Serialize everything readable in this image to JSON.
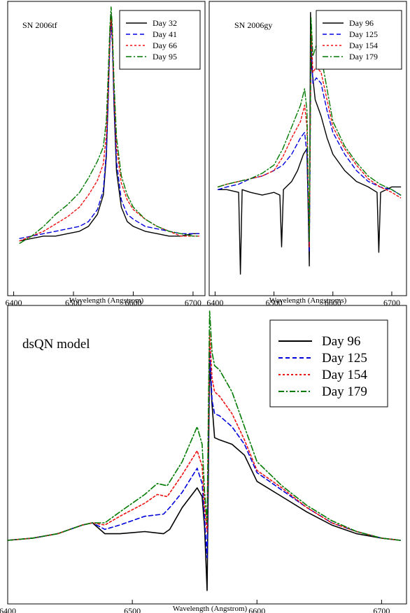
{
  "colors": {
    "black": "#000000",
    "blue": "#0000dd",
    "red": "#ee1111",
    "green": "#007a00"
  },
  "chart_data": [
    {
      "type": "line",
      "annotation": "SN 2006tf",
      "xlabel": "Wavelength (Angstrom)",
      "ylabel": "",
      "xlim": [
        6390,
        6720
      ],
      "xticks": [
        6400,
        6500,
        6600,
        6700
      ],
      "legend_position": "top-right",
      "grid": false,
      "series": [
        {
          "name": "Day 32",
          "color": "#000000",
          "dash": "solid",
          "x": [
            6410,
            6430,
            6450,
            6470,
            6490,
            6510,
            6525,
            6540,
            6550,
            6555,
            6558,
            6561,
            6563,
            6565,
            6568,
            6572,
            6580,
            6590,
            6600,
            6620,
            6640,
            6660,
            6680,
            6700,
            6710
          ],
          "y": [
            0.03,
            0.04,
            0.05,
            0.05,
            0.06,
            0.07,
            0.09,
            0.14,
            0.22,
            0.38,
            0.62,
            0.88,
            0.97,
            0.88,
            0.58,
            0.32,
            0.17,
            0.11,
            0.09,
            0.07,
            0.06,
            0.05,
            0.05,
            0.06,
            0.06
          ]
        },
        {
          "name": "Day 41",
          "color": "#0000dd",
          "dash": "6,4",
          "x": [
            6410,
            6430,
            6450,
            6470,
            6490,
            6510,
            6525,
            6540,
            6550,
            6555,
            6558,
            6561,
            6563,
            6565,
            6568,
            6572,
            6580,
            6590,
            6600,
            6620,
            6640,
            6660,
            6680,
            6700,
            6710
          ],
          "y": [
            0.04,
            0.05,
            0.06,
            0.07,
            0.08,
            0.09,
            0.11,
            0.16,
            0.24,
            0.4,
            0.62,
            0.85,
            0.93,
            0.85,
            0.6,
            0.36,
            0.2,
            0.14,
            0.12,
            0.09,
            0.08,
            0.07,
            0.06,
            0.06,
            0.06
          ]
        },
        {
          "name": "Day 66",
          "color": "#ee1111",
          "dash": "3,3",
          "x": [
            6410,
            6430,
            6450,
            6470,
            6490,
            6510,
            6525,
            6540,
            6550,
            6555,
            6558,
            6561,
            6563,
            6565,
            6568,
            6572,
            6580,
            6590,
            6600,
            6620,
            6640,
            6660,
            6680,
            6700,
            6710
          ],
          "y": [
            0.03,
            0.05,
            0.07,
            0.1,
            0.13,
            0.17,
            0.22,
            0.28,
            0.35,
            0.47,
            0.66,
            0.88,
            0.95,
            0.88,
            0.64,
            0.42,
            0.27,
            0.2,
            0.16,
            0.12,
            0.09,
            0.07,
            0.05,
            0.05,
            0.05
          ]
        },
        {
          "name": "Day 95",
          "color": "#007a00",
          "dash": "8,3,2,3",
          "x": [
            6410,
            6430,
            6450,
            6470,
            6490,
            6510,
            6525,
            6540,
            6550,
            6555,
            6558,
            6561,
            6563,
            6565,
            6568,
            6572,
            6580,
            6590,
            6600,
            6620,
            6640,
            6660,
            6680,
            6700,
            6710
          ],
          "y": [
            0.02,
            0.05,
            0.09,
            0.14,
            0.18,
            0.23,
            0.29,
            0.36,
            0.42,
            0.53,
            0.72,
            0.92,
            1.0,
            0.92,
            0.68,
            0.46,
            0.3,
            0.22,
            0.17,
            0.12,
            0.09,
            0.07,
            0.06,
            0.05,
            0.05
          ]
        }
      ]
    },
    {
      "type": "line",
      "annotation": "SN 2006gy",
      "xlabel": "Wavelength (Angstroms)",
      "ylabel": "",
      "xlim": [
        6390,
        6725
      ],
      "xticks": [
        6400,
        6500,
        6600,
        6700
      ],
      "legend_position": "top-right",
      "grid": false,
      "series": [
        {
          "name": "Day 96",
          "color": "#000000",
          "dash": "solid",
          "x": [
            6405,
            6420,
            6440,
            6443,
            6446,
            6460,
            6480,
            6500,
            6510,
            6513,
            6516,
            6530,
            6540,
            6550,
            6556,
            6560,
            6562,
            6564,
            6570,
            6580,
            6590,
            6600,
            6620,
            6640,
            6660,
            6675,
            6678,
            6681,
            6700,
            6715
          ],
          "y": [
            0.33,
            0.33,
            0.32,
            0.02,
            0.33,
            0.32,
            0.31,
            0.32,
            0.31,
            0.12,
            0.33,
            0.36,
            0.4,
            0.46,
            0.48,
            0.05,
            0.98,
            0.78,
            0.66,
            0.6,
            0.52,
            0.46,
            0.4,
            0.36,
            0.34,
            0.32,
            0.1,
            0.32,
            0.34,
            0.34
          ]
        },
        {
          "name": "Day 125",
          "color": "#0000dd",
          "dash": "6,4",
          "x": [
            6405,
            6420,
            6440,
            6460,
            6480,
            6500,
            6515,
            6530,
            6545,
            6552,
            6556,
            6560,
            6563,
            6566,
            6572,
            6580,
            6590,
            6600,
            6620,
            6640,
            6660,
            6680,
            6700,
            6715
          ],
          "y": [
            0.33,
            0.34,
            0.35,
            0.37,
            0.38,
            0.4,
            0.42,
            0.46,
            0.52,
            0.54,
            0.46,
            0.1,
            0.88,
            0.72,
            0.74,
            0.72,
            0.62,
            0.54,
            0.46,
            0.4,
            0.36,
            0.34,
            0.33,
            0.31
          ]
        },
        {
          "name": "Day 154",
          "color": "#ee1111",
          "dash": "3,3",
          "x": [
            6405,
            6420,
            6440,
            6460,
            6480,
            6500,
            6515,
            6530,
            6545,
            6552,
            6556,
            6560,
            6563,
            6566,
            6572,
            6580,
            6590,
            6600,
            6620,
            6640,
            6660,
            6680,
            6700,
            6715
          ],
          "y": [
            0.34,
            0.35,
            0.36,
            0.37,
            0.38,
            0.4,
            0.45,
            0.52,
            0.58,
            0.64,
            0.56,
            0.12,
            0.92,
            0.76,
            0.78,
            0.76,
            0.66,
            0.56,
            0.48,
            0.42,
            0.37,
            0.34,
            0.32,
            0.3
          ]
        },
        {
          "name": "Day 179",
          "color": "#007a00",
          "dash": "8,3,2,3",
          "x": [
            6405,
            6420,
            6440,
            6460,
            6480,
            6500,
            6515,
            6530,
            6545,
            6552,
            6556,
            6560,
            6563,
            6566,
            6572,
            6580,
            6590,
            6600,
            6620,
            6640,
            6660,
            6680,
            6700,
            6715
          ],
          "y": [
            0.34,
            0.35,
            0.36,
            0.37,
            0.39,
            0.42,
            0.48,
            0.56,
            0.64,
            0.7,
            0.62,
            0.14,
            0.96,
            0.82,
            0.86,
            0.82,
            0.7,
            0.58,
            0.49,
            0.43,
            0.38,
            0.35,
            0.33,
            0.31
          ]
        }
      ]
    },
    {
      "type": "line",
      "annotation": "dsQN model",
      "xlabel": "Wavelength (Angstrom)",
      "ylabel": "",
      "xlim": [
        6400,
        6720
      ],
      "xticks": [
        6400,
        6500,
        6600,
        6700
      ],
      "legend_position": "top-right",
      "grid": false,
      "series": [
        {
          "name": "Day 96",
          "color": "#000000",
          "dash": "solid",
          "x": [
            6400,
            6420,
            6440,
            6460,
            6468,
            6478,
            6490,
            6510,
            6525,
            6530,
            6540,
            6552,
            6556,
            6558,
            6560,
            6562,
            6564,
            6566,
            6570,
            6580,
            6590,
            6600,
            6620,
            6640,
            6660,
            6680,
            6700,
            6715
          ],
          "y": [
            0.0,
            0.01,
            0.03,
            0.07,
            0.08,
            0.03,
            0.03,
            0.04,
            0.03,
            0.05,
            0.15,
            0.24,
            0.2,
            0.06,
            -0.23,
            0.82,
            0.62,
            0.47,
            0.46,
            0.44,
            0.39,
            0.27,
            0.2,
            0.13,
            0.07,
            0.03,
            0.01,
            0.0
          ]
        },
        {
          "name": "Day 125",
          "color": "#0000dd",
          "dash": "6,4",
          "x": [
            6400,
            6420,
            6440,
            6460,
            6468,
            6478,
            6490,
            6510,
            6525,
            6530,
            6540,
            6552,
            6556,
            6558,
            6560,
            6562,
            6564,
            6566,
            6570,
            6580,
            6590,
            6600,
            6620,
            6640,
            6660,
            6680,
            6700,
            6715
          ],
          "y": [
            0.0,
            0.01,
            0.03,
            0.07,
            0.08,
            0.05,
            0.07,
            0.11,
            0.12,
            0.15,
            0.22,
            0.33,
            0.26,
            0.1,
            -0.08,
            0.88,
            0.64,
            0.58,
            0.57,
            0.52,
            0.44,
            0.31,
            0.23,
            0.15,
            0.08,
            0.04,
            0.01,
            0.0
          ]
        },
        {
          "name": "Day 154",
          "color": "#ee1111",
          "dash": "3,3",
          "x": [
            6400,
            6420,
            6440,
            6460,
            6468,
            6478,
            6490,
            6510,
            6520,
            6528,
            6540,
            6552,
            6556,
            6558,
            6560,
            6562,
            6564,
            6566,
            6570,
            6580,
            6590,
            6600,
            6620,
            6640,
            6660,
            6680,
            6700,
            6715
          ],
          "y": [
            0.0,
            0.01,
            0.03,
            0.07,
            0.08,
            0.07,
            0.11,
            0.17,
            0.21,
            0.2,
            0.3,
            0.41,
            0.34,
            0.15,
            0.04,
            0.95,
            0.74,
            0.68,
            0.66,
            0.58,
            0.46,
            0.32,
            0.24,
            0.15,
            0.08,
            0.04,
            0.01,
            0.0
          ]
        },
        {
          "name": "Day 179",
          "color": "#007a00",
          "dash": "8,3,2,3",
          "x": [
            6400,
            6420,
            6440,
            6460,
            6468,
            6478,
            6490,
            6510,
            6520,
            6528,
            6540,
            6552,
            6556,
            6558,
            6560,
            6562,
            6564,
            6566,
            6570,
            6580,
            6590,
            6600,
            6620,
            6640,
            6660,
            6680,
            6700,
            6715
          ],
          "y": [
            0.0,
            0.01,
            0.03,
            0.07,
            0.08,
            0.08,
            0.13,
            0.21,
            0.26,
            0.25,
            0.36,
            0.52,
            0.44,
            0.22,
            0.08,
            1.05,
            0.86,
            0.8,
            0.78,
            0.68,
            0.52,
            0.36,
            0.25,
            0.16,
            0.09,
            0.04,
            0.01,
            0.0
          ]
        }
      ]
    }
  ]
}
